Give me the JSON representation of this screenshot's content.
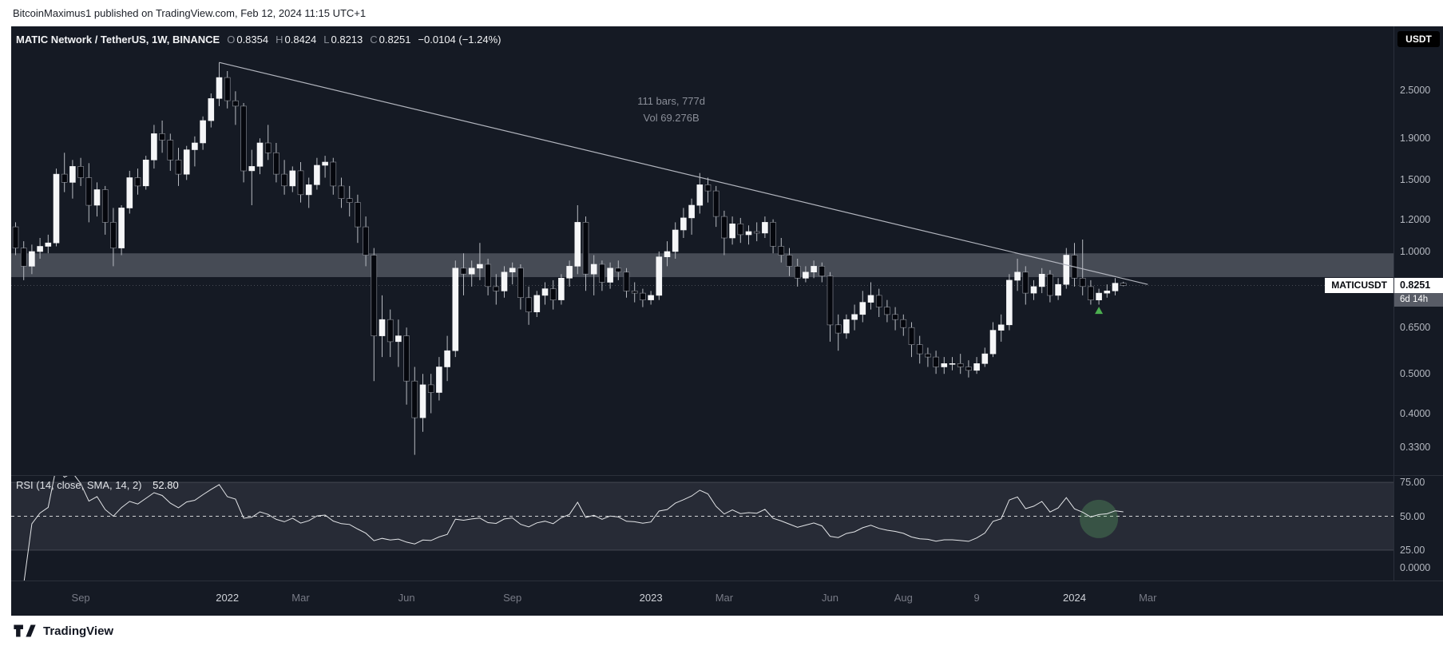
{
  "header": {
    "text": "BitcoinMaximus1 published on TradingView.com, Feb 12, 2024 11:15 UTC+1"
  },
  "footer": {
    "brand": "TradingView"
  },
  "quote_badge": "USDT",
  "legend": {
    "symbol": "MATIC Network / TetherUS, 1W, BINANCE",
    "ohlc": [
      {
        "label": "O",
        "value": "0.8354"
      },
      {
        "label": "H",
        "value": "0.8424"
      },
      {
        "label": "L",
        "value": "0.8213"
      },
      {
        "label": "C",
        "value": "0.8251"
      }
    ],
    "change": "−0.0104 (−1.24%)"
  },
  "annotation": {
    "line1": "111 bars, 777d",
    "line2": "Vol 69.276B"
  },
  "price_label": {
    "symbol": "MATICUSDT",
    "price": "0.8251",
    "countdown": "6d 14h"
  },
  "rsi_legend": {
    "title": "RSI (14, close, SMA, 14, 2)",
    "value": "52.80"
  },
  "colors": {
    "background": "#151a24",
    "up": "#f5f6f8",
    "down": "#05070d",
    "down_border": "#8f939c",
    "wick": "#b7bac1",
    "trendline": "#b2b5be",
    "zone": "rgba(120,123,134,0.5)",
    "marker_green": "#4caf50",
    "rsi_line": "#e3e5e8",
    "rsi_band": "rgba(134,137,147,0.16)",
    "rsi_level": "rgba(134,137,147,0.35)",
    "rsi_mid": "rgba(255,255,255,0.8)",
    "rsi_highlight": "rgba(102,187,106,0.28)"
  },
  "chart_data": {
    "type": "candlestick",
    "title": "MATIC Network / TetherUS",
    "ticker": "MATICUSDT",
    "exchange": "BINANCE",
    "timeframe": "1W",
    "price_scale": "log",
    "ylim": [
      0.3,
      3.05
    ],
    "ohlc_current": {
      "o": 0.8354,
      "h": 0.8424,
      "l": 0.8213,
      "c": 0.8251,
      "change": -0.0104,
      "change_pct": -1.24
    },
    "candles": [
      [
        1.15,
        1.18,
        0.98,
        1.02
      ],
      [
        1.02,
        1.06,
        0.85,
        0.92
      ],
      [
        0.92,
        1.04,
        0.88,
        1.0
      ],
      [
        1.0,
        1.08,
        0.96,
        1.03
      ],
      [
        1.03,
        1.1,
        0.99,
        1.05
      ],
      [
        1.05,
        1.6,
        1.03,
        1.55
      ],
      [
        1.55,
        1.75,
        1.4,
        1.48
      ],
      [
        1.48,
        1.68,
        1.35,
        1.62
      ],
      [
        1.62,
        1.7,
        1.45,
        1.52
      ],
      [
        1.52,
        1.65,
        1.18,
        1.3
      ],
      [
        1.3,
        1.48,
        1.22,
        1.42
      ],
      [
        1.42,
        1.45,
        1.1,
        1.18
      ],
      [
        1.18,
        1.28,
        0.92,
        1.02
      ],
      [
        1.02,
        1.3,
        0.98,
        1.28
      ],
      [
        1.28,
        1.58,
        1.24,
        1.52
      ],
      [
        1.52,
        1.6,
        1.38,
        1.45
      ],
      [
        1.45,
        1.72,
        1.42,
        1.68
      ],
      [
        1.68,
        2.05,
        1.6,
        1.95
      ],
      [
        1.95,
        2.1,
        1.75,
        1.88
      ],
      [
        1.88,
        1.95,
        1.58,
        1.68
      ],
      [
        1.68,
        1.8,
        1.45,
        1.55
      ],
      [
        1.55,
        1.82,
        1.5,
        1.78
      ],
      [
        1.78,
        1.92,
        1.62,
        1.85
      ],
      [
        1.85,
        2.15,
        1.78,
        2.1
      ],
      [
        2.1,
        2.45,
        2.02,
        2.38
      ],
      [
        2.38,
        2.92,
        2.28,
        2.68
      ],
      [
        2.68,
        2.78,
        2.25,
        2.35
      ],
      [
        2.35,
        2.48,
        2.05,
        2.28
      ],
      [
        2.28,
        2.32,
        1.48,
        1.58
      ],
      [
        1.58,
        1.78,
        1.3,
        1.62
      ],
      [
        1.62,
        1.9,
        1.55,
        1.85
      ],
      [
        1.85,
        2.05,
        1.68,
        1.75
      ],
      [
        1.75,
        1.85,
        1.48,
        1.55
      ],
      [
        1.55,
        1.68,
        1.38,
        1.45
      ],
      [
        1.45,
        1.62,
        1.4,
        1.58
      ],
      [
        1.58,
        1.66,
        1.32,
        1.38
      ],
      [
        1.38,
        1.52,
        1.28,
        1.46
      ],
      [
        1.46,
        1.7,
        1.42,
        1.63
      ],
      [
        1.63,
        1.72,
        1.52,
        1.66
      ],
      [
        1.66,
        1.7,
        1.38,
        1.45
      ],
      [
        1.45,
        1.52,
        1.28,
        1.35
      ],
      [
        1.35,
        1.45,
        1.22,
        1.32
      ],
      [
        1.32,
        1.38,
        1.05,
        1.15
      ],
      [
        1.15,
        1.22,
        0.92,
        0.98
      ],
      [
        0.98,
        1.02,
        0.48,
        0.62
      ],
      [
        0.62,
        0.78,
        0.55,
        0.68
      ],
      [
        0.68,
        0.72,
        0.55,
        0.6
      ],
      [
        0.6,
        0.68,
        0.52,
        0.62
      ],
      [
        0.62,
        0.65,
        0.42,
        0.48
      ],
      [
        0.48,
        0.52,
        0.316,
        0.39
      ],
      [
        0.39,
        0.5,
        0.36,
        0.47
      ],
      [
        0.47,
        0.5,
        0.4,
        0.45
      ],
      [
        0.45,
        0.55,
        0.43,
        0.52
      ],
      [
        0.52,
        0.62,
        0.48,
        0.57
      ],
      [
        0.57,
        0.95,
        0.55,
        0.91
      ],
      [
        0.91,
        0.99,
        0.78,
        0.88
      ],
      [
        0.88,
        0.95,
        0.82,
        0.91
      ],
      [
        0.91,
        1.05,
        0.85,
        0.93
      ],
      [
        0.93,
        0.96,
        0.78,
        0.82
      ],
      [
        0.82,
        0.88,
        0.74,
        0.8
      ],
      [
        0.8,
        0.92,
        0.77,
        0.89
      ],
      [
        0.89,
        0.94,
        0.83,
        0.91
      ],
      [
        0.91,
        0.93,
        0.72,
        0.77
      ],
      [
        0.77,
        0.82,
        0.66,
        0.71
      ],
      [
        0.71,
        0.8,
        0.69,
        0.78
      ],
      [
        0.78,
        0.84,
        0.74,
        0.81
      ],
      [
        0.81,
        0.85,
        0.72,
        0.76
      ],
      [
        0.76,
        0.88,
        0.74,
        0.86
      ],
      [
        0.86,
        0.95,
        0.82,
        0.92
      ],
      [
        0.92,
        1.3,
        0.88,
        1.18
      ],
      [
        1.18,
        1.22,
        0.8,
        0.88
      ],
      [
        0.88,
        0.98,
        0.78,
        0.93
      ],
      [
        0.93,
        0.95,
        0.8,
        0.84
      ],
      [
        0.84,
        0.94,
        0.81,
        0.91
      ],
      [
        0.91,
        0.95,
        0.85,
        0.89
      ],
      [
        0.89,
        0.91,
        0.77,
        0.8
      ],
      [
        0.8,
        0.84,
        0.75,
        0.79
      ],
      [
        0.79,
        0.81,
        0.73,
        0.76
      ],
      [
        0.76,
        0.8,
        0.74,
        0.78
      ],
      [
        0.78,
        1.0,
        0.76,
        0.97
      ],
      [
        0.97,
        1.06,
        0.92,
        1.0
      ],
      [
        1.0,
        1.18,
        0.96,
        1.13
      ],
      [
        1.13,
        1.28,
        1.08,
        1.21
      ],
      [
        1.21,
        1.35,
        1.1,
        1.3
      ],
      [
        1.3,
        1.56,
        1.24,
        1.46
      ],
      [
        1.46,
        1.52,
        1.32,
        1.41
      ],
      [
        1.41,
        1.45,
        1.15,
        1.22
      ],
      [
        1.22,
        1.26,
        0.98,
        1.08
      ],
      [
        1.08,
        1.22,
        1.04,
        1.17
      ],
      [
        1.17,
        1.21,
        1.05,
        1.1
      ],
      [
        1.1,
        1.16,
        1.04,
        1.12
      ],
      [
        1.12,
        1.18,
        1.06,
        1.11
      ],
      [
        1.11,
        1.22,
        1.08,
        1.18
      ],
      [
        1.18,
        1.2,
        0.99,
        1.03
      ],
      [
        1.03,
        1.08,
        0.94,
        0.98
      ],
      [
        0.98,
        1.02,
        0.87,
        0.92
      ],
      [
        0.92,
        0.96,
        0.82,
        0.86
      ],
      [
        0.86,
        0.92,
        0.84,
        0.89
      ],
      [
        0.89,
        0.95,
        0.86,
        0.92
      ],
      [
        0.92,
        0.94,
        0.84,
        0.87
      ],
      [
        0.87,
        0.89,
        0.6,
        0.66
      ],
      [
        0.66,
        0.7,
        0.57,
        0.63
      ],
      [
        0.63,
        0.7,
        0.61,
        0.68
      ],
      [
        0.68,
        0.74,
        0.64,
        0.7
      ],
      [
        0.7,
        0.8,
        0.67,
        0.75
      ],
      [
        0.75,
        0.84,
        0.72,
        0.78
      ],
      [
        0.78,
        0.81,
        0.69,
        0.73
      ],
      [
        0.73,
        0.76,
        0.67,
        0.7
      ],
      [
        0.7,
        0.73,
        0.64,
        0.68
      ],
      [
        0.68,
        0.7,
        0.62,
        0.65
      ],
      [
        0.65,
        0.67,
        0.55,
        0.59
      ],
      [
        0.59,
        0.62,
        0.53,
        0.56
      ],
      [
        0.56,
        0.58,
        0.52,
        0.55
      ],
      [
        0.55,
        0.57,
        0.5,
        0.52
      ],
      [
        0.52,
        0.55,
        0.5,
        0.53
      ],
      [
        0.53,
        0.55,
        0.51,
        0.53
      ],
      [
        0.53,
        0.56,
        0.5,
        0.52
      ],
      [
        0.52,
        0.54,
        0.49,
        0.51
      ],
      [
        0.51,
        0.55,
        0.5,
        0.53
      ],
      [
        0.53,
        0.58,
        0.52,
        0.56
      ],
      [
        0.56,
        0.67,
        0.55,
        0.64
      ],
      [
        0.64,
        0.7,
        0.6,
        0.66
      ],
      [
        0.66,
        0.88,
        0.64,
        0.85
      ],
      [
        0.85,
        0.96,
        0.8,
        0.89
      ],
      [
        0.89,
        0.92,
        0.74,
        0.79
      ],
      [
        0.79,
        0.85,
        0.76,
        0.82
      ],
      [
        0.82,
        0.91,
        0.79,
        0.88
      ],
      [
        0.88,
        0.9,
        0.75,
        0.78
      ],
      [
        0.78,
        0.86,
        0.76,
        0.83
      ],
      [
        0.83,
        1.02,
        0.81,
        0.98
      ],
      [
        0.98,
        1.05,
        0.82,
        0.86
      ],
      [
        0.86,
        1.07,
        0.78,
        0.82
      ],
      [
        0.82,
        0.85,
        0.74,
        0.76
      ],
      [
        0.76,
        0.81,
        0.74,
        0.79
      ],
      [
        0.79,
        0.83,
        0.77,
        0.8
      ],
      [
        0.8,
        0.86,
        0.78,
        0.8355
      ],
      [
        0.8354,
        0.8424,
        0.8213,
        0.8251
      ]
    ],
    "y_ticks": [
      {
        "text": "2.5000",
        "value": 2.5
      },
      {
        "text": "1.9000",
        "value": 1.9
      },
      {
        "text": "1.5000",
        "value": 1.5
      },
      {
        "text": "1.2000",
        "value": 1.2
      },
      {
        "text": "1.0000",
        "value": 1.0
      },
      {
        "text": "0.6500",
        "value": 0.65
      },
      {
        "text": "0.5000",
        "value": 0.5
      },
      {
        "text": "0.4000",
        "value": 0.4
      },
      {
        "text": "0.3300",
        "value": 0.33
      }
    ],
    "x_ticks": [
      {
        "label": "Sep",
        "index": 8,
        "emphasis": false
      },
      {
        "label": "2022",
        "index": 26,
        "emphasis": true
      },
      {
        "label": "Mar",
        "index": 35,
        "emphasis": false
      },
      {
        "label": "Jun",
        "index": 48,
        "emphasis": false
      },
      {
        "label": "Sep",
        "index": 61,
        "emphasis": false
      },
      {
        "label": "2023",
        "index": 78,
        "emphasis": true
      },
      {
        "label": "Mar",
        "index": 87,
        "emphasis": false
      },
      {
        "label": "Jun",
        "index": 100,
        "emphasis": false
      },
      {
        "label": "Aug",
        "index": 109,
        "emphasis": false
      },
      {
        "label": "9",
        "index": 118,
        "emphasis": false
      },
      {
        "label": "2024",
        "index": 130,
        "emphasis": true
      },
      {
        "label": "Mar",
        "index": 139,
        "emphasis": false
      }
    ],
    "trendline": {
      "from_index": 25,
      "from_price": 2.92,
      "to_index": 139,
      "to_price": 0.83
    },
    "support_zone": {
      "top": 0.99,
      "bottom": 0.865
    },
    "marker": {
      "index": 133,
      "price": 0.715,
      "shape": "triangle-up"
    },
    "measurement": {
      "bars": 111,
      "days": 777,
      "volume": "69.276B"
    },
    "rsi_panel": {
      "period": 14,
      "current": 52.8,
      "levels": {
        "upper": 75,
        "mid": 50,
        "lower": 25
      },
      "highlight_index": 133,
      "highlight_value": 48,
      "y_ticks": [
        {
          "text": "75.00",
          "value": 75
        },
        {
          "text": "50.00",
          "value": 50
        },
        {
          "text": "25.00",
          "value": 25
        },
        {
          "text": "0.0000",
          "value": 0
        }
      ]
    }
  }
}
